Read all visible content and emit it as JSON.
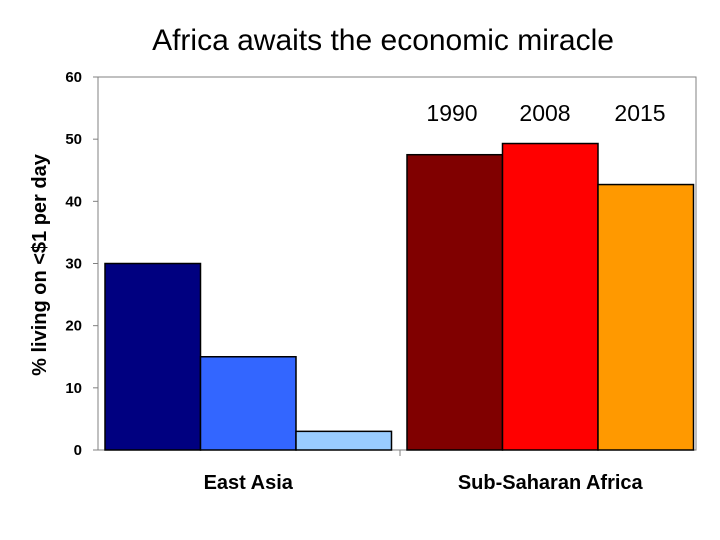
{
  "chart_data": {
    "type": "bar",
    "title": "Africa awaits the economic miracle",
    "xlabel": "",
    "ylabel": "% living on <$1 per day",
    "ylim": [
      0,
      60
    ],
    "yticks": [
      0,
      10,
      20,
      30,
      40,
      50,
      60
    ],
    "grid": false,
    "legend_position": "top-right",
    "groups": [
      {
        "name": "East Asia",
        "series": [
          {
            "name": "1990",
            "value": 30,
            "color": "#000080"
          },
          {
            "name": "2008",
            "value": 15,
            "color": "#3366FF"
          },
          {
            "name": "2015",
            "value": 3,
            "color": "#99CCFF"
          }
        ]
      },
      {
        "name": "Sub-Saharan Africa",
        "series": [
          {
            "name": "1990",
            "value": 47.5,
            "color": "#800000"
          },
          {
            "name": "2008",
            "value": 49.3,
            "color": "#FF0000"
          },
          {
            "name": "2015",
            "value": 42.7,
            "color": "#FF9900"
          }
        ]
      }
    ],
    "legend": [
      "1990",
      "2008",
      "2015"
    ]
  }
}
